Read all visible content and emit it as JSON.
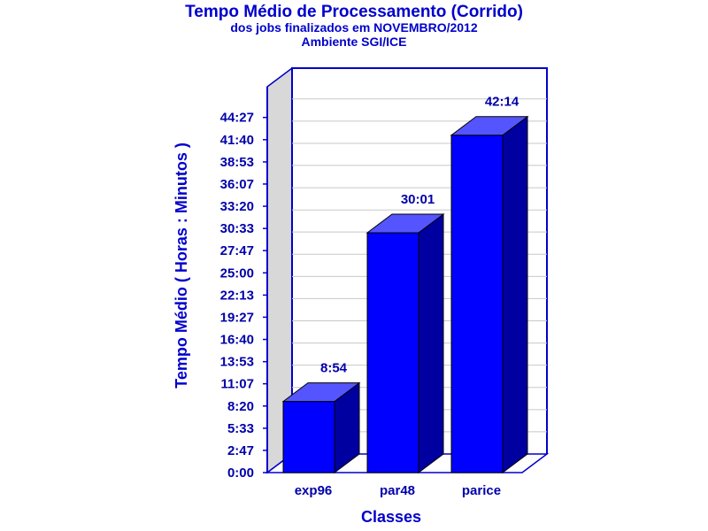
{
  "chart_data": {
    "type": "bar",
    "title": "Tempo Médio de Processamento (Corrido)",
    "subtitle": "dos jobs finalizados em NOVEMBRO/2012",
    "subtitle2": "Ambiente SGI/ICE",
    "xlabel": "Classes",
    "ylabel": "Tempo Médio ( Horas : Minutos )",
    "categories": [
      "exp96",
      "par48",
      "parice"
    ],
    "values": [
      8.9,
      30.0167,
      42.2333
    ],
    "value_labels": [
      "8:54",
      "30:01",
      "42:14"
    ],
    "yticks": [
      0,
      2.7833,
      5.55,
      8.3333,
      11.1167,
      13.8833,
      16.6667,
      19.45,
      22.2167,
      25,
      27.7833,
      30.55,
      33.3333,
      36.1167,
      38.8833,
      41.6667,
      44.45
    ],
    "ytick_labels": [
      "0:00",
      "2:47",
      "5:33",
      "8:20",
      "11:07",
      "13:53",
      "16:40",
      "19:27",
      "22:13",
      "25:00",
      "27:47",
      "30:33",
      "33:20",
      "36:07",
      "38:53",
      "41:40",
      "44:27"
    ],
    "ylim": [
      0,
      46.3
    ],
    "grid": true,
    "bar_front_color": "#0000ff",
    "bar_top_color": "#5555ff",
    "bar_side_color": "#0000a0",
    "axis_color": "#0000cc",
    "wall_color": "#d8d8d8"
  }
}
